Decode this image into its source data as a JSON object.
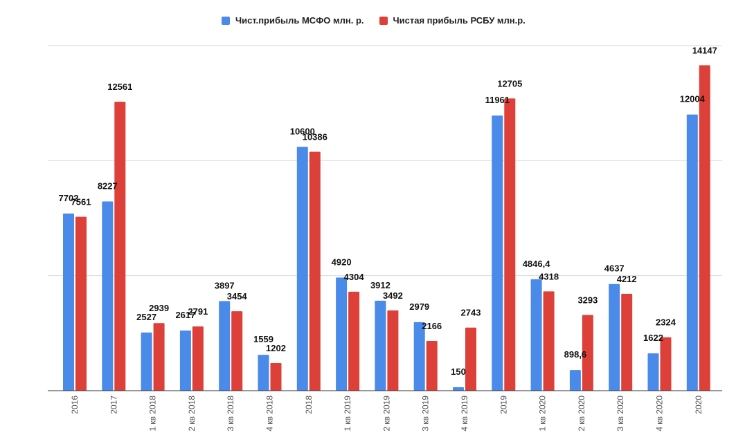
{
  "chart_data": {
    "type": "bar",
    "categories": [
      "2016",
      "2017",
      "1 кв 2018",
      "2 кв 2018",
      "3 кв 2018",
      "4 кв 2018",
      "2018",
      "1 кв 2019",
      "2 кв 2019",
      "3 кв 2019",
      "4 кв 2019",
      "2019",
      "1 кв 2020",
      "2 кв 2020",
      "3 кв 2020",
      "4 кв 2020",
      "2020"
    ],
    "series": [
      {
        "name": "Чист.прибыль МСФО млн. р.",
        "color": "#4a8ae8",
        "values": [
          7702,
          8227,
          2527,
          2617,
          3897,
          1559,
          10600,
          4920,
          3912,
          2979,
          150,
          11961,
          4846.4,
          898.6,
          4637,
          1622,
          12004
        ],
        "labels": [
          "7702",
          "8227",
          "2527",
          "2617",
          "3897",
          "1559",
          "10600",
          "4920",
          "3912",
          "2979",
          "150",
          "11961",
          "4846,4",
          "898,6",
          "4637",
          "1622",
          "12004"
        ]
      },
      {
        "name": "Чистая прибыль РСБУ млн.р.",
        "color": "#dc4038",
        "values": [
          7561,
          12561,
          2939,
          2791,
          3454,
          1202,
          10386,
          4304,
          3492,
          2166,
          2743,
          12705,
          4318,
          3293,
          4212,
          2324,
          14147
        ],
        "labels": [
          "7561",
          "12561",
          "2939",
          "2791",
          "3454",
          "1202",
          "10386",
          "4304",
          "3492",
          "2166",
          "2743",
          "12705",
          "4318",
          "3293",
          "4212",
          "2324",
          "14147"
        ]
      }
    ],
    "ylim": [
      0,
      15000
    ],
    "gridlines": [
      5000,
      10000,
      15000
    ],
    "grid": true,
    "legend_position": "top"
  }
}
